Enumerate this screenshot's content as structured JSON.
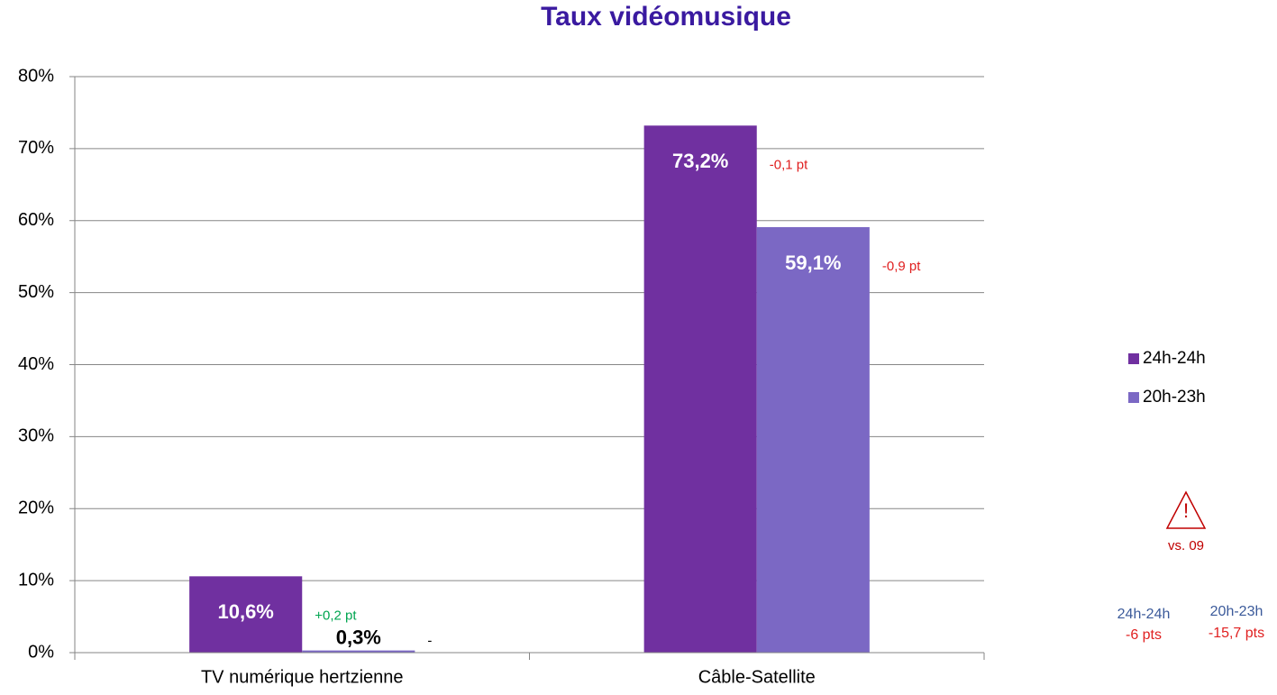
{
  "chart_data": {
    "type": "bar",
    "title": "Taux vidéomusique",
    "categories": [
      "TV numérique hertzienne",
      "Câble-Satellite"
    ],
    "series": [
      {
        "name": "24h-24h",
        "color": "#7030a0",
        "values": [
          10.6,
          73.2
        ],
        "value_labels": [
          "10,6%",
          "73,2%"
        ],
        "changes": [
          "+0,2 pt",
          "-0,1 pt"
        ],
        "change_colors": [
          "#00a550",
          "#e02020"
        ]
      },
      {
        "name": "20h-23h",
        "color": "#7b68c4",
        "values": [
          0.3,
          59.1
        ],
        "value_labels": [
          "0,3%",
          "59,1%"
        ],
        "changes": [
          "-",
          "-0,9 pt"
        ],
        "change_colors": [
          "#000000",
          "#e02020"
        ]
      }
    ],
    "ylim": [
      0,
      80
    ],
    "yticks": [
      {
        "value": 0,
        "label": "0%"
      },
      {
        "value": 10,
        "label": "10%"
      },
      {
        "value": 20,
        "label": "20%"
      },
      {
        "value": 30,
        "label": "30%"
      },
      {
        "value": 40,
        "label": "40%"
      },
      {
        "value": 50,
        "label": "50%"
      },
      {
        "value": 60,
        "label": "60%"
      },
      {
        "value": 70,
        "label": "70%"
      },
      {
        "value": 80,
        "label": "80%"
      }
    ],
    "grid": true,
    "legend": "right",
    "note": {
      "label": "vs. 09",
      "summary": [
        {
          "name": "24h-24h",
          "change": "-6 pts"
        },
        {
          "name": "20h-23h",
          "change": "-15,7 pts"
        }
      ]
    }
  }
}
